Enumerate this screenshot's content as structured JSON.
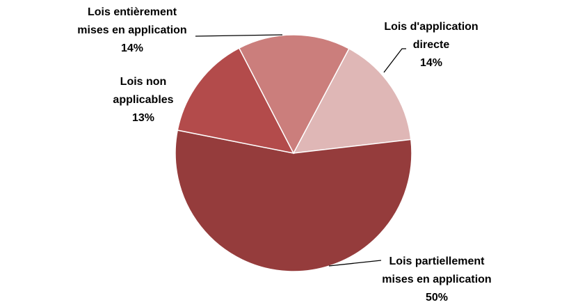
{
  "chart_data": {
    "type": "pie",
    "title": "",
    "slices": [
      {
        "label_lines": [
          "Lois d'application",
          "directe"
        ],
        "value": 14,
        "value_label": "14%",
        "color": "#DFB7B6"
      },
      {
        "label_lines": [
          "Lois partiellement",
          "mises en application"
        ],
        "value": 50,
        "value_label": "50%",
        "color": "#953C3C"
      },
      {
        "label_lines": [
          "Lois non",
          "applicables"
        ],
        "value": 13,
        "value_label": "13%",
        "color": "#B34B4B"
      },
      {
        "label_lines": [
          "Lois entièrement",
          "mises en application"
        ],
        "value": 14,
        "value_label": "14%",
        "color": "#CB7E7C"
      }
    ],
    "start_angle_deg": 28,
    "direction": "clockwise",
    "legend": "none",
    "labels_outside": true
  }
}
